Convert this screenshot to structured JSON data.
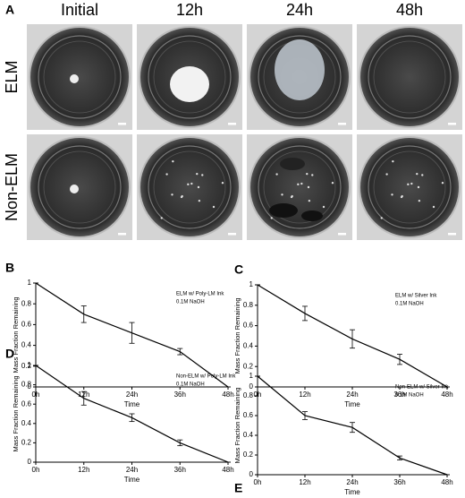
{
  "figure_a": {
    "panel_label": "A",
    "columns": [
      "Initial",
      "12h",
      "24h",
      "48h"
    ],
    "rows": [
      "ELM",
      "Non-ELM"
    ]
  },
  "chart_data": [
    {
      "type": "line",
      "panel_label": "B",
      "annotation": [
        "ELM w/ Poly-LM Ink",
        "0.1M NaOH"
      ],
      "x_label": "Time",
      "y_label": "Mass Fraction Remaining",
      "categories": [
        "0h",
        "12h",
        "24h",
        "36h",
        "48h"
      ],
      "series": [
        {
          "color": "#000000",
          "values": [
            1,
            0.7,
            0.52,
            0.34,
            0
          ],
          "errors": [
            0,
            0.08,
            0.1,
            0.03,
            0
          ]
        }
      ],
      "ylim": [
        0,
        1
      ],
      "yticks": [
        0,
        0.2,
        0.4,
        0.6,
        0.8,
        1
      ]
    },
    {
      "type": "line",
      "panel_label": "C",
      "annotation": [
        "ELM w/ Silver Ink",
        "0.1M NaOH"
      ],
      "x_label": "Time",
      "y_label": "Mass Fraction Remaining",
      "categories": [
        "0h",
        "12h",
        "24h",
        "36h",
        "48h"
      ],
      "series": [
        {
          "color": "#000000",
          "values": [
            1,
            0.72,
            0.47,
            0.27,
            0
          ],
          "errors": [
            0,
            0.07,
            0.09,
            0.05,
            0
          ]
        }
      ],
      "ylim": [
        0,
        1
      ],
      "yticks": [
        0,
        0.2,
        0.4,
        0.6,
        0.8,
        1
      ]
    },
    {
      "type": "line",
      "panel_label": "D",
      "annotation": [
        "Non-ELM w/ Poly-LM Ink",
        "0.1M NaOH"
      ],
      "x_label": "Time",
      "y_label": "Mass Fraction Remaining",
      "categories": [
        "0h",
        "12h",
        "24h",
        "36h",
        "48h"
      ],
      "series": [
        {
          "color": "#000000",
          "values": [
            1,
            0.66,
            0.46,
            0.2,
            0
          ],
          "errors": [
            0,
            0.07,
            0.04,
            0.03,
            0
          ]
        }
      ],
      "ylim": [
        0,
        1
      ],
      "yticks": [
        0,
        0.2,
        0.4,
        0.6,
        0.8,
        1
      ]
    },
    {
      "type": "line",
      "panel_label": "E",
      "annotation": [
        "Non-ELM w/ Silver Ink",
        "0.1M NaOH"
      ],
      "x_label": "Time",
      "y_label": "Mass Fraction Remaining",
      "categories": [
        "0h",
        "12h",
        "24h",
        "36h",
        "48h"
      ],
      "series": [
        {
          "color": "#000000",
          "values": [
            1,
            0.6,
            0.48,
            0.17,
            0
          ],
          "errors": [
            0,
            0.04,
            0.05,
            0.02,
            0
          ]
        }
      ],
      "ylim": [
        0,
        1
      ],
      "yticks": [
        0,
        0.2,
        0.4,
        0.6,
        0.8,
        1
      ]
    }
  ]
}
